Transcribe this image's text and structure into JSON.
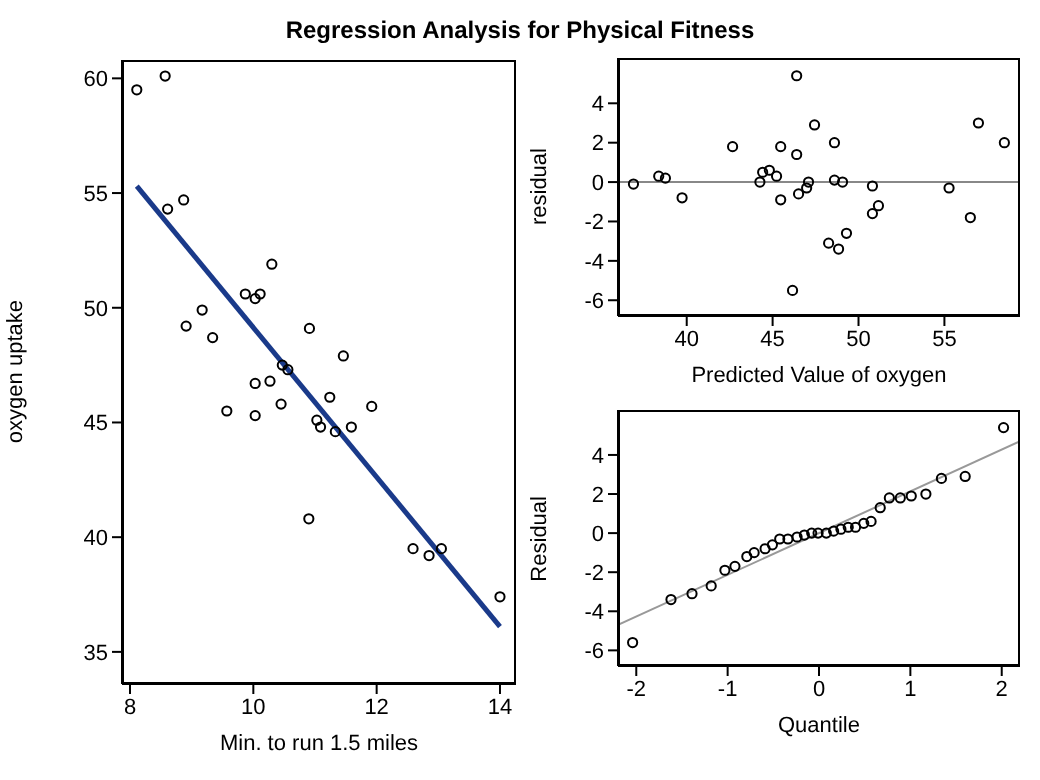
{
  "chart_data": [
    {
      "type": "scatter",
      "title": "Regression Analysis for Physical Fitness",
      "xlabel": "Min. to run 1.5 miles",
      "ylabel": "oxygen uptake",
      "grid": false,
      "xlim": [
        7.87,
        14.26
      ],
      "ylim": [
        33.6,
        60.8
      ],
      "xticks": [
        8,
        10,
        12,
        14
      ],
      "yticks": [
        35,
        40,
        45,
        50,
        55,
        60
      ],
      "series": [
        {
          "marker": "circle",
          "color": "#000000",
          "x": [
            8.11,
            8.57,
            8.61,
            8.87,
            10.3,
            9.87,
            10.03,
            10.11,
            9.17,
            8.91,
            9.34,
            10.91,
            11.46,
            10.47,
            10.56,
            10.27,
            10.03,
            11.24,
            10.45,
            11.92,
            9.57,
            10.03,
            11.03,
            11.09,
            11.59,
            11.33,
            10.9,
            12.59,
            13.05,
            12.85,
            14.0
          ],
          "values": [
            59.5,
            60.1,
            54.3,
            54.7,
            51.9,
            50.6,
            50.4,
            50.6,
            49.9,
            49.2,
            48.7,
            49.1,
            47.9,
            47.5,
            47.3,
            46.8,
            46.7,
            46.1,
            45.8,
            45.7,
            45.5,
            45.3,
            45.1,
            44.8,
            44.8,
            44.6,
            40.8,
            39.5,
            39.5,
            39.2,
            37.4
          ]
        },
        {
          "type": "line",
          "marker": "none",
          "color": "#1a3a8a",
          "x": [
            8.11,
            14.0
          ],
          "values": [
            55.3,
            36.1
          ]
        }
      ]
    },
    {
      "type": "scatter",
      "xlabel": "Predicted Value of oxygen",
      "ylabel": "residual",
      "grid": false,
      "xlim": [
        36.0,
        59.4
      ],
      "ylim": [
        -6.8,
        6.3
      ],
      "xticks": [
        40,
        45,
        50,
        55
      ],
      "yticks": [
        -6,
        -4,
        -2,
        0,
        2,
        4
      ],
      "ref_lines": [
        {
          "axis": "y",
          "value": 0,
          "color": "#888888"
        }
      ],
      "series": [
        {
          "marker": "circle",
          "color": "#000000",
          "x": [
            36.9,
            38.37,
            38.76,
            39.73,
            42.67,
            44.26,
            44.42,
            44.81,
            45.23,
            45.47,
            45.47,
            46.4,
            46.4,
            46.51,
            46.16,
            46.98,
            47.09,
            47.44,
            48.26,
            48.6,
            48.6,
            48.84,
            49.07,
            49.3,
            50.81,
            50.81,
            51.16,
            55.27,
            56.51,
            56.98,
            58.49
          ],
          "values": [
            -0.1,
            0.3,
            0.2,
            -0.8,
            1.8,
            0.0,
            0.5,
            0.6,
            0.3,
            1.8,
            -0.9,
            1.4,
            5.4,
            -0.6,
            -5.5,
            -0.3,
            0.0,
            2.9,
            -3.1,
            2.0,
            0.1,
            -3.4,
            0.0,
            -2.6,
            -0.2,
            -1.6,
            -1.2,
            -0.3,
            -1.8,
            3.0,
            2.0
          ]
        }
      ]
    },
    {
      "type": "scatter",
      "xlabel": "Quantile",
      "ylabel": "Residual",
      "grid": false,
      "xlim": [
        -2.2,
        2.2
      ],
      "ylim": [
        -6.8,
        6.3
      ],
      "xticks": [
        -2,
        -1,
        0,
        1,
        2
      ],
      "yticks": [
        -6,
        -4,
        -2,
        0,
        2,
        4
      ],
      "series": [
        {
          "marker": "circle",
          "color": "#000000",
          "x": [
            -2.04,
            -1.62,
            -1.39,
            -1.18,
            -1.03,
            -0.92,
            -0.79,
            -0.71,
            -0.59,
            -0.51,
            -0.43,
            -0.34,
            -0.24,
            -0.16,
            -0.08,
            -0.01,
            0.08,
            0.16,
            0.24,
            0.32,
            0.4,
            0.49,
            0.57,
            0.67,
            0.77,
            0.89,
            1.01,
            1.17,
            1.34,
            1.6,
            2.02
          ],
          "values": [
            -5.6,
            -3.4,
            -3.1,
            -2.7,
            -1.9,
            -1.7,
            -1.2,
            -1.0,
            -0.8,
            -0.6,
            -0.3,
            -0.3,
            -0.2,
            -0.1,
            0,
            0,
            0,
            0.1,
            0.2,
            0.3,
            0.3,
            0.5,
            0.6,
            1.3,
            1.8,
            1.8,
            1.9,
            2.0,
            2.8,
            2.9,
            5.4
          ]
        },
        {
          "type": "line",
          "marker": "none",
          "color": "#999999",
          "x": [
            -2.2,
            2.2
          ],
          "values": [
            -4.7,
            4.7
          ]
        }
      ]
    }
  ]
}
